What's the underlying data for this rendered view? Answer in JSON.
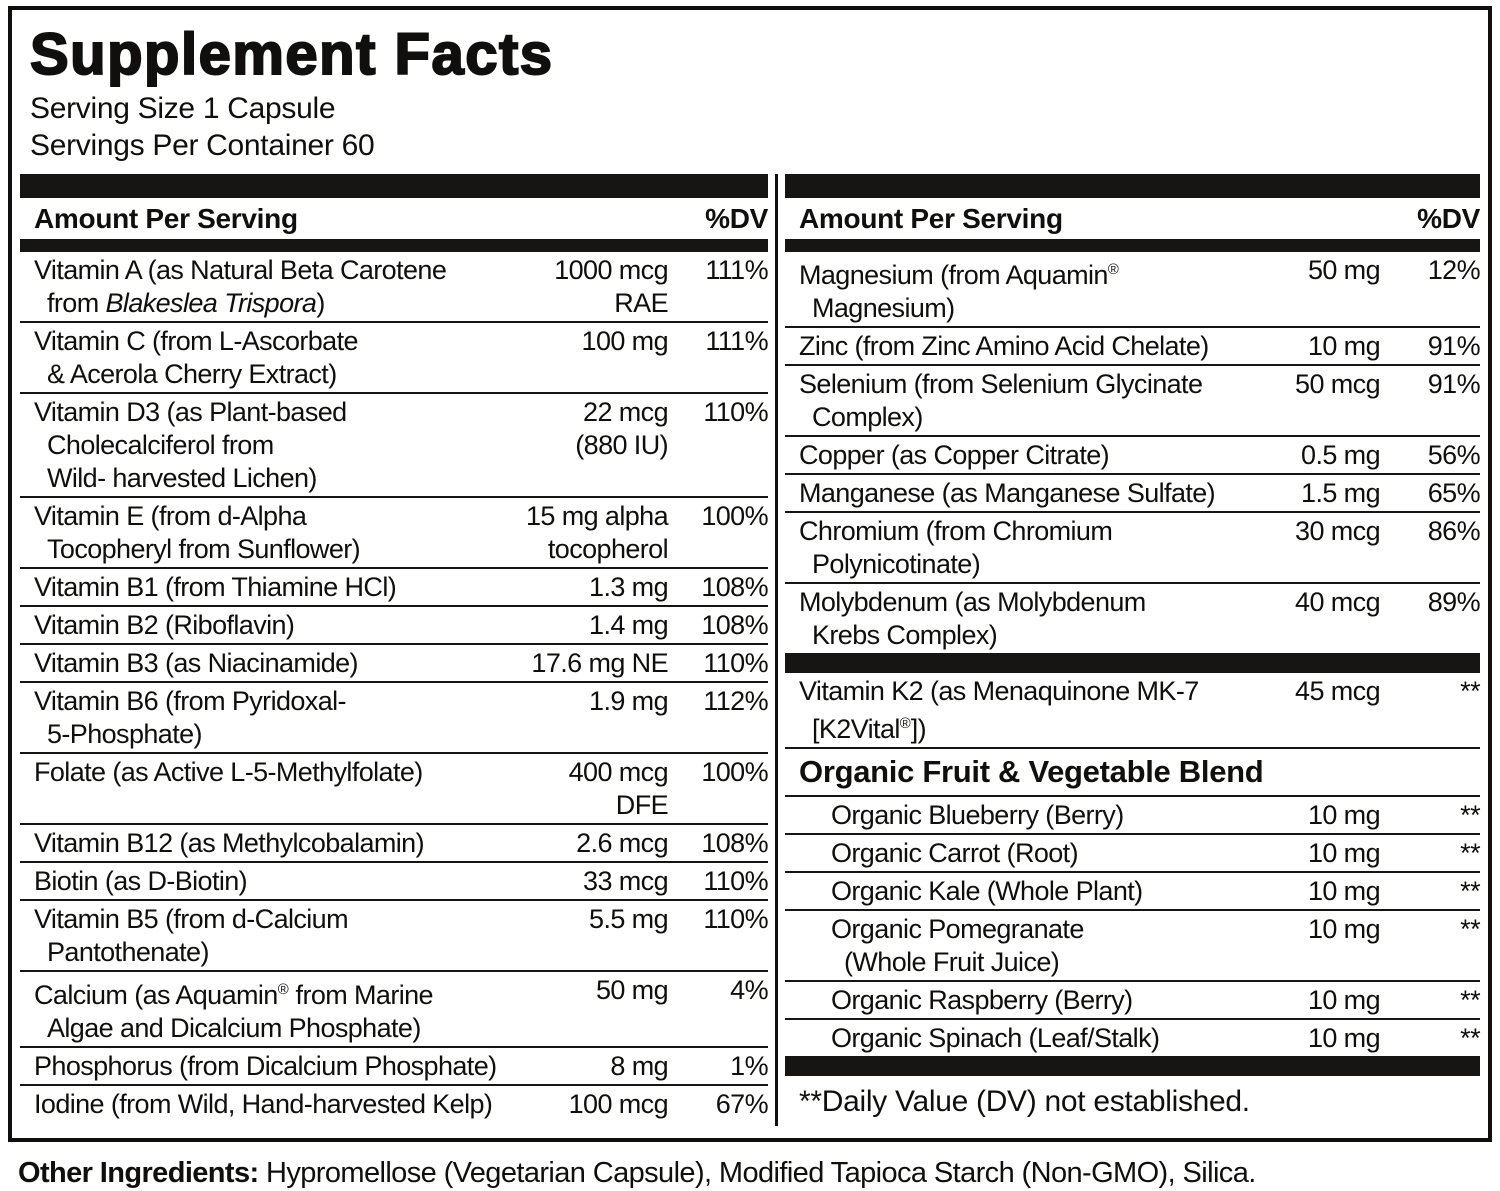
{
  "title": "Supplement Facts",
  "serving": {
    "size": "Serving Size 1 Capsule",
    "per_container": "Servings Per Container 60"
  },
  "table_header": {
    "amount": "Amount Per Serving",
    "dv": "%DV"
  },
  "columns": {
    "left": [
      {
        "type": "row",
        "name": "Vitamin A (as Natural Beta Carotene\nfrom *Blakeslea Trispora*)",
        "amount": "1000 mcg\nRAE",
        "dv": "111%"
      },
      {
        "type": "row",
        "name": "Vitamin C (from L-Ascorbate\n& Acerola Cherry Extract)",
        "amount": "100 mg",
        "dv": "111%"
      },
      {
        "type": "row",
        "name": "Vitamin D3 (as Plant-based\nCholecalciferol from\nWild- harvested Lichen)",
        "amount": "22 mcg\n(880 IU)",
        "dv": "110%"
      },
      {
        "type": "row",
        "name": "Vitamin E (from d-Alpha\nTocopheryl from Sunflower)",
        "amount": "15 mg alpha\ntocopherol",
        "dv": "100%"
      },
      {
        "type": "row",
        "name": "Vitamin B1 (from Thiamine HCl)",
        "amount": "1.3 mg",
        "dv": "108%"
      },
      {
        "type": "row",
        "name": "Vitamin B2 (Riboflavin)",
        "amount": "1.4 mg",
        "dv": "108%"
      },
      {
        "type": "row",
        "name": "Vitamin B3 (as Niacinamide)",
        "amount": "17.6 mg NE",
        "dv": "110%"
      },
      {
        "type": "row",
        "name": "Vitamin B6 (from Pyridoxal-\n5-Phosphate)",
        "amount": "1.9 mg",
        "dv": "112%"
      },
      {
        "type": "row",
        "name": "Folate (as Active L-5-Methylfolate)",
        "amount": "400 mcg\nDFE",
        "dv": "100%"
      },
      {
        "type": "row",
        "name": "Vitamin B12 (as Methylcobalamin)",
        "amount": "2.6 mcg",
        "dv": "108%"
      },
      {
        "type": "row",
        "name": "Biotin (as D-Biotin)",
        "amount": "33 mcg",
        "dv": "110%"
      },
      {
        "type": "row",
        "name": "Vitamin B5 (from d-Calcium\nPantothenate)",
        "amount": "5.5 mg",
        "dv": "110%"
      },
      {
        "type": "row",
        "name": "Calcium (as Aquamin^®^ from Marine\nAlgae and Dicalcium Phosphate)",
        "amount": "50 mg",
        "dv": "4%"
      },
      {
        "type": "row",
        "name": "Phosphorus (from Dicalcium Phosphate)",
        "amount": "8 mg",
        "dv": "1%"
      },
      {
        "type": "row",
        "name": "Iodine (from Wild, Hand-harvested Kelp)",
        "amount": "100 mcg",
        "dv": "67%"
      }
    ],
    "right": [
      {
        "type": "row",
        "name": "Magnesium (from Aquamin^®^\nMagnesium)",
        "amount": "50 mg",
        "dv": "12%"
      },
      {
        "type": "row",
        "name": "Zinc (from Zinc Amino Acid Chelate)",
        "amount": "10 mg",
        "dv": "91%"
      },
      {
        "type": "row",
        "name": "Selenium (from Selenium Glycinate\nComplex)",
        "amount": "50 mcg",
        "dv": "91%"
      },
      {
        "type": "row",
        "name": "Copper (as Copper Citrate)",
        "amount": "0.5 mg",
        "dv": "56%"
      },
      {
        "type": "row",
        "name": "Manganese (as Manganese Sulfate)",
        "amount": "1.5 mg",
        "dv": "65%"
      },
      {
        "type": "row",
        "name": "Chromium (from Chromium\nPolynicotinate)",
        "amount": "30 mcg",
        "dv": "86%"
      },
      {
        "type": "row",
        "name": "Molybdenum (as Molybdenum\nKrebs Complex)",
        "amount": "40 mcg",
        "dv": "89%"
      },
      {
        "type": "bar"
      },
      {
        "type": "row",
        "name": "Vitamin K2 (as Menaquinone MK-7\n[K2Vital^®^])",
        "amount": "45 mcg",
        "dv": "**"
      },
      {
        "type": "section",
        "text": "Organic Fruit & Vegetable Blend"
      },
      {
        "type": "row",
        "indent": true,
        "name": "Organic Blueberry (Berry)",
        "amount": "10 mg",
        "dv": "**"
      },
      {
        "type": "row",
        "indent": true,
        "name": "Organic Carrot (Root)",
        "amount": "10 mg",
        "dv": "**"
      },
      {
        "type": "row",
        "indent": true,
        "name": "Organic Kale (Whole Plant)",
        "amount": "10 mg",
        "dv": "**"
      },
      {
        "type": "row",
        "indent": true,
        "name": "Organic Pomegranate\n(Whole Fruit Juice)",
        "amount": "10 mg",
        "dv": "**"
      },
      {
        "type": "row",
        "indent": true,
        "name": "Organic Raspberry (Berry)",
        "amount": "10 mg",
        "dv": "**"
      },
      {
        "type": "row",
        "indent": true,
        "name": "Organic Spinach (Leaf/Stalk)",
        "amount": "10 mg",
        "dv": "**"
      },
      {
        "type": "bar"
      },
      {
        "type": "note",
        "text": "**Daily Value (DV) not established."
      }
    ]
  },
  "other_ingredients": {
    "label": "Other Ingredients:",
    "text": "Hypromellose (Vegetarian Capsule), Modified Tapioca Starch (Non-GMO), Silica."
  }
}
